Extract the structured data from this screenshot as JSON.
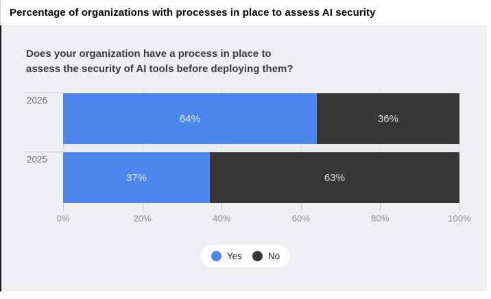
{
  "page": {
    "header_title": "Percentage of organizations with processes in place to assess AI security"
  },
  "chart_data": {
    "type": "bar",
    "variant": "horizontal-stacked",
    "title_lines": [
      "Does your organization have a process in place to",
      "assess the security of AI tools before deploying them?"
    ],
    "categories": [
      "2026",
      "2025"
    ],
    "series": [
      {
        "name": "Yes",
        "color": "#4d86ec",
        "values": [
          64,
          37
        ]
      },
      {
        "name": "No",
        "color": "#393636",
        "values": [
          36,
          63
        ]
      }
    ],
    "value_suffix": "%",
    "x_ticks": [
      "0%",
      "20%",
      "40%",
      "60%",
      "80%",
      "100%"
    ],
    "xlim": [
      0,
      100
    ],
    "grid": true,
    "legend_position": "bottom-center",
    "colors": {
      "yes": "#4d86ec",
      "no": "#393636",
      "panel_background": "#edeff2",
      "bar_value_text": "rgba(255,255,255,0.82)"
    }
  }
}
